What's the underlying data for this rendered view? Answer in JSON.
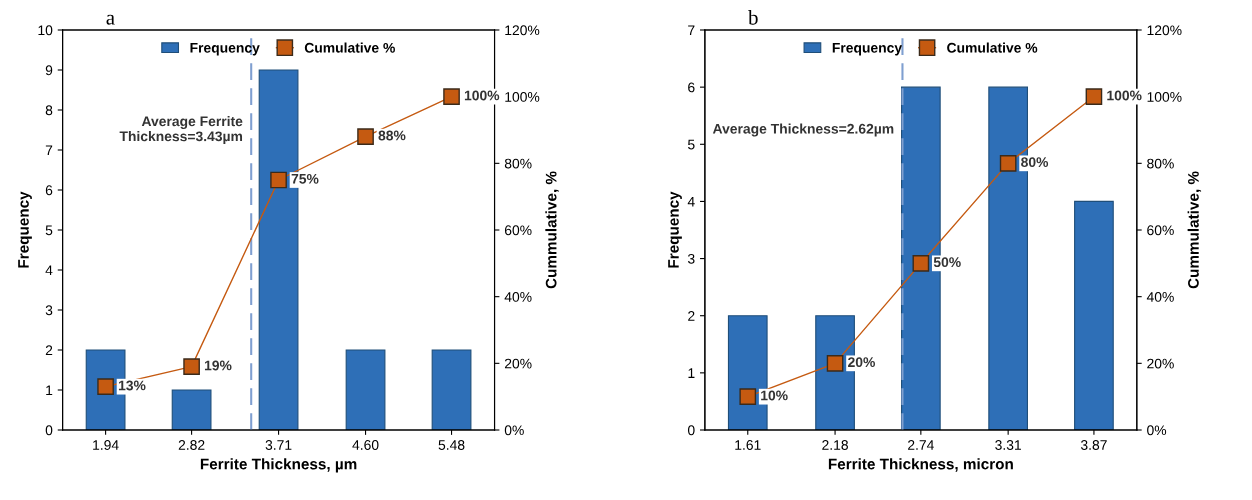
{
  "chart_data": [
    {
      "type": "bar",
      "title": "a",
      "xlabel": "Ferrite Thickness, µm",
      "ylabel": "Frequency",
      "y2label": "Cummulative, %",
      "x": [
        1.94,
        2.82,
        3.71,
        4.6,
        5.48
      ],
      "xlim": [
        1.5,
        5.92
      ],
      "xticks": [
        1.94,
        2.82,
        3.71,
        {
          "value": 4.6,
          "label": "4.60"
        },
        5.48
      ],
      "ylim": [
        0,
        10
      ],
      "yticks": [
        0,
        1,
        2,
        3,
        4,
        5,
        6,
        7,
        8,
        9,
        10
      ],
      "y2lim": [
        0,
        120
      ],
      "y2ticks": [
        {
          "value": 0,
          "label": "0%"
        },
        {
          "value": 20,
          "label": "20%"
        },
        {
          "value": 40,
          "label": "40%"
        },
        {
          "value": 60,
          "label": "60%"
        },
        {
          "value": 80,
          "label": "80%"
        },
        {
          "value": 100,
          "label": "100%"
        },
        {
          "value": 120,
          "label": "120%"
        }
      ],
      "series": [
        {
          "name": "Frequency",
          "color": "#2e6fb7",
          "values": [
            2,
            1,
            9,
            2,
            2
          ]
        },
        {
          "name": "Cumulative %",
          "type": "line",
          "axis": "y2",
          "color": "#c55a11",
          "marker": "square",
          "line_style": "solid",
          "values": [
            13,
            19,
            75,
            88,
            100
          ],
          "value_labels": [
            "13%",
            "19%",
            "75%",
            "88%",
            "100%"
          ]
        }
      ],
      "ref_lines": [
        {
          "axis": "x",
          "value": 3.43,
          "label": "Average Ferrite\nThickness=3.43µm",
          "color": "#7f9fd0",
          "line_style": "dashed"
        }
      ],
      "legend": "top",
      "grid": false
    },
    {
      "type": "bar",
      "title": "b",
      "xlabel": "Ferrite Thickness, micron",
      "ylabel": "Frequency",
      "y2label": "Cummulative, %",
      "x": [
        1.61,
        2.18,
        2.74,
        3.31,
        3.87
      ],
      "xlim": [
        1.33,
        4.15
      ],
      "xticks": [
        1.61,
        2.18,
        2.74,
        3.31,
        3.87
      ],
      "ylim": [
        0,
        7
      ],
      "yticks": [
        0,
        1,
        2,
        3,
        4,
        5,
        6,
        7
      ],
      "y2lim": [
        0,
        120
      ],
      "y2ticks": [
        {
          "value": 0,
          "label": "0%"
        },
        {
          "value": 20,
          "label": "20%"
        },
        {
          "value": 40,
          "label": "40%"
        },
        {
          "value": 60,
          "label": "60%"
        },
        {
          "value": 80,
          "label": "80%"
        },
        {
          "value": 100,
          "label": "100%"
        },
        {
          "value": 120,
          "label": "120%"
        }
      ],
      "series": [
        {
          "name": "Frequency",
          "color": "#2e6fb7",
          "values": [
            2,
            2,
            6,
            6,
            4
          ]
        },
        {
          "name": "Cumulative %",
          "type": "line",
          "axis": "y2",
          "color": "#c55a11",
          "marker": "square",
          "line_style": "solid",
          "values": [
            10,
            20,
            50,
            80,
            100
          ],
          "value_labels": [
            "10%",
            "20%",
            "50%",
            "80%",
            "100%"
          ]
        }
      ],
      "ref_lines": [
        {
          "axis": "x",
          "value": 2.62,
          "label": "Average Thickness=2.62µm",
          "color": "#7f9fd0",
          "line_style": "dashed"
        }
      ],
      "legend": "top",
      "grid": false
    }
  ]
}
